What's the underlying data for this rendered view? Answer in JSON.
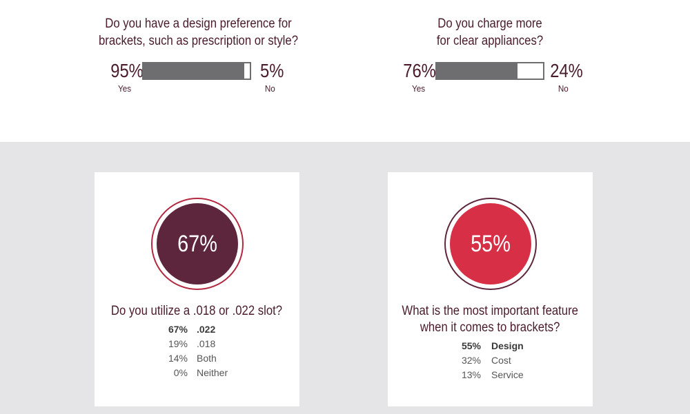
{
  "chart_data": [
    {
      "type": "bar",
      "title": "Do you have a design preference for brackets, such as prescription or style?",
      "categories": [
        "Yes",
        "No"
      ],
      "values": [
        95,
        5
      ],
      "value_labels": [
        "95%",
        "5%"
      ]
    },
    {
      "type": "bar",
      "title": "Do you charge more for clear appliances?",
      "categories": [
        "Yes",
        "No"
      ],
      "values": [
        76,
        24
      ],
      "value_labels": [
        "76%",
        "24%"
      ]
    },
    {
      "type": "table",
      "title": "Do you utilize a .018 or .022 slot?",
      "highlight": "67%",
      "categories": [
        ".022",
        ".018",
        "Both",
        "Neither"
      ],
      "values": [
        67,
        19,
        14,
        0
      ],
      "value_labels": [
        "67%",
        "19%",
        "14%",
        "0%"
      ]
    },
    {
      "type": "table",
      "title": "What is the most important feature when it comes to brackets?",
      "highlight": "55%",
      "categories": [
        "Design",
        "Cost",
        "Service"
      ],
      "values": [
        55,
        32,
        13
      ],
      "value_labels": [
        "55%",
        "32%",
        "13%"
      ]
    }
  ],
  "top": {
    "q1": {
      "line1": "Do you have a design preference for",
      "line2": "brackets, such as prescription or style?",
      "yes_pct": "95%",
      "yes_label": "Yes",
      "no_pct": "5%",
      "no_label": "No",
      "yes_value": 95
    },
    "q2": {
      "line1": "Do you charge more",
      "line2": "for clear appliances?",
      "yes_pct": "76%",
      "yes_label": "Yes",
      "no_pct": "24%",
      "no_label": "No",
      "yes_value": 76
    }
  },
  "cards": {
    "c1": {
      "circle_value": "67%",
      "question": "Do you utilize a .018 or .022 slot?",
      "rows": [
        {
          "pct": "67%",
          "label": ".022"
        },
        {
          "pct": "19%",
          "label": ".018"
        },
        {
          "pct": "14%",
          "label": "Both"
        },
        {
          "pct": "0%",
          "label": "Neither"
        }
      ],
      "disc_color": "#5e263c",
      "ring_color": "#b3283f"
    },
    "c2": {
      "circle_value": "55%",
      "question_line1": "What is the most important feature",
      "question_line2": "when it comes to brackets?",
      "rows": [
        {
          "pct": "55%",
          "label": "Design"
        },
        {
          "pct": "32%",
          "label": "Cost"
        },
        {
          "pct": "13%",
          "label": "Service"
        }
      ],
      "disc_color": "#d62f46",
      "ring_color": "#5e263c"
    }
  },
  "colors": {
    "bar_fill": "#6e6e70",
    "text": "#4a1b2d",
    "bottom_bg": "#e5e5e7"
  }
}
